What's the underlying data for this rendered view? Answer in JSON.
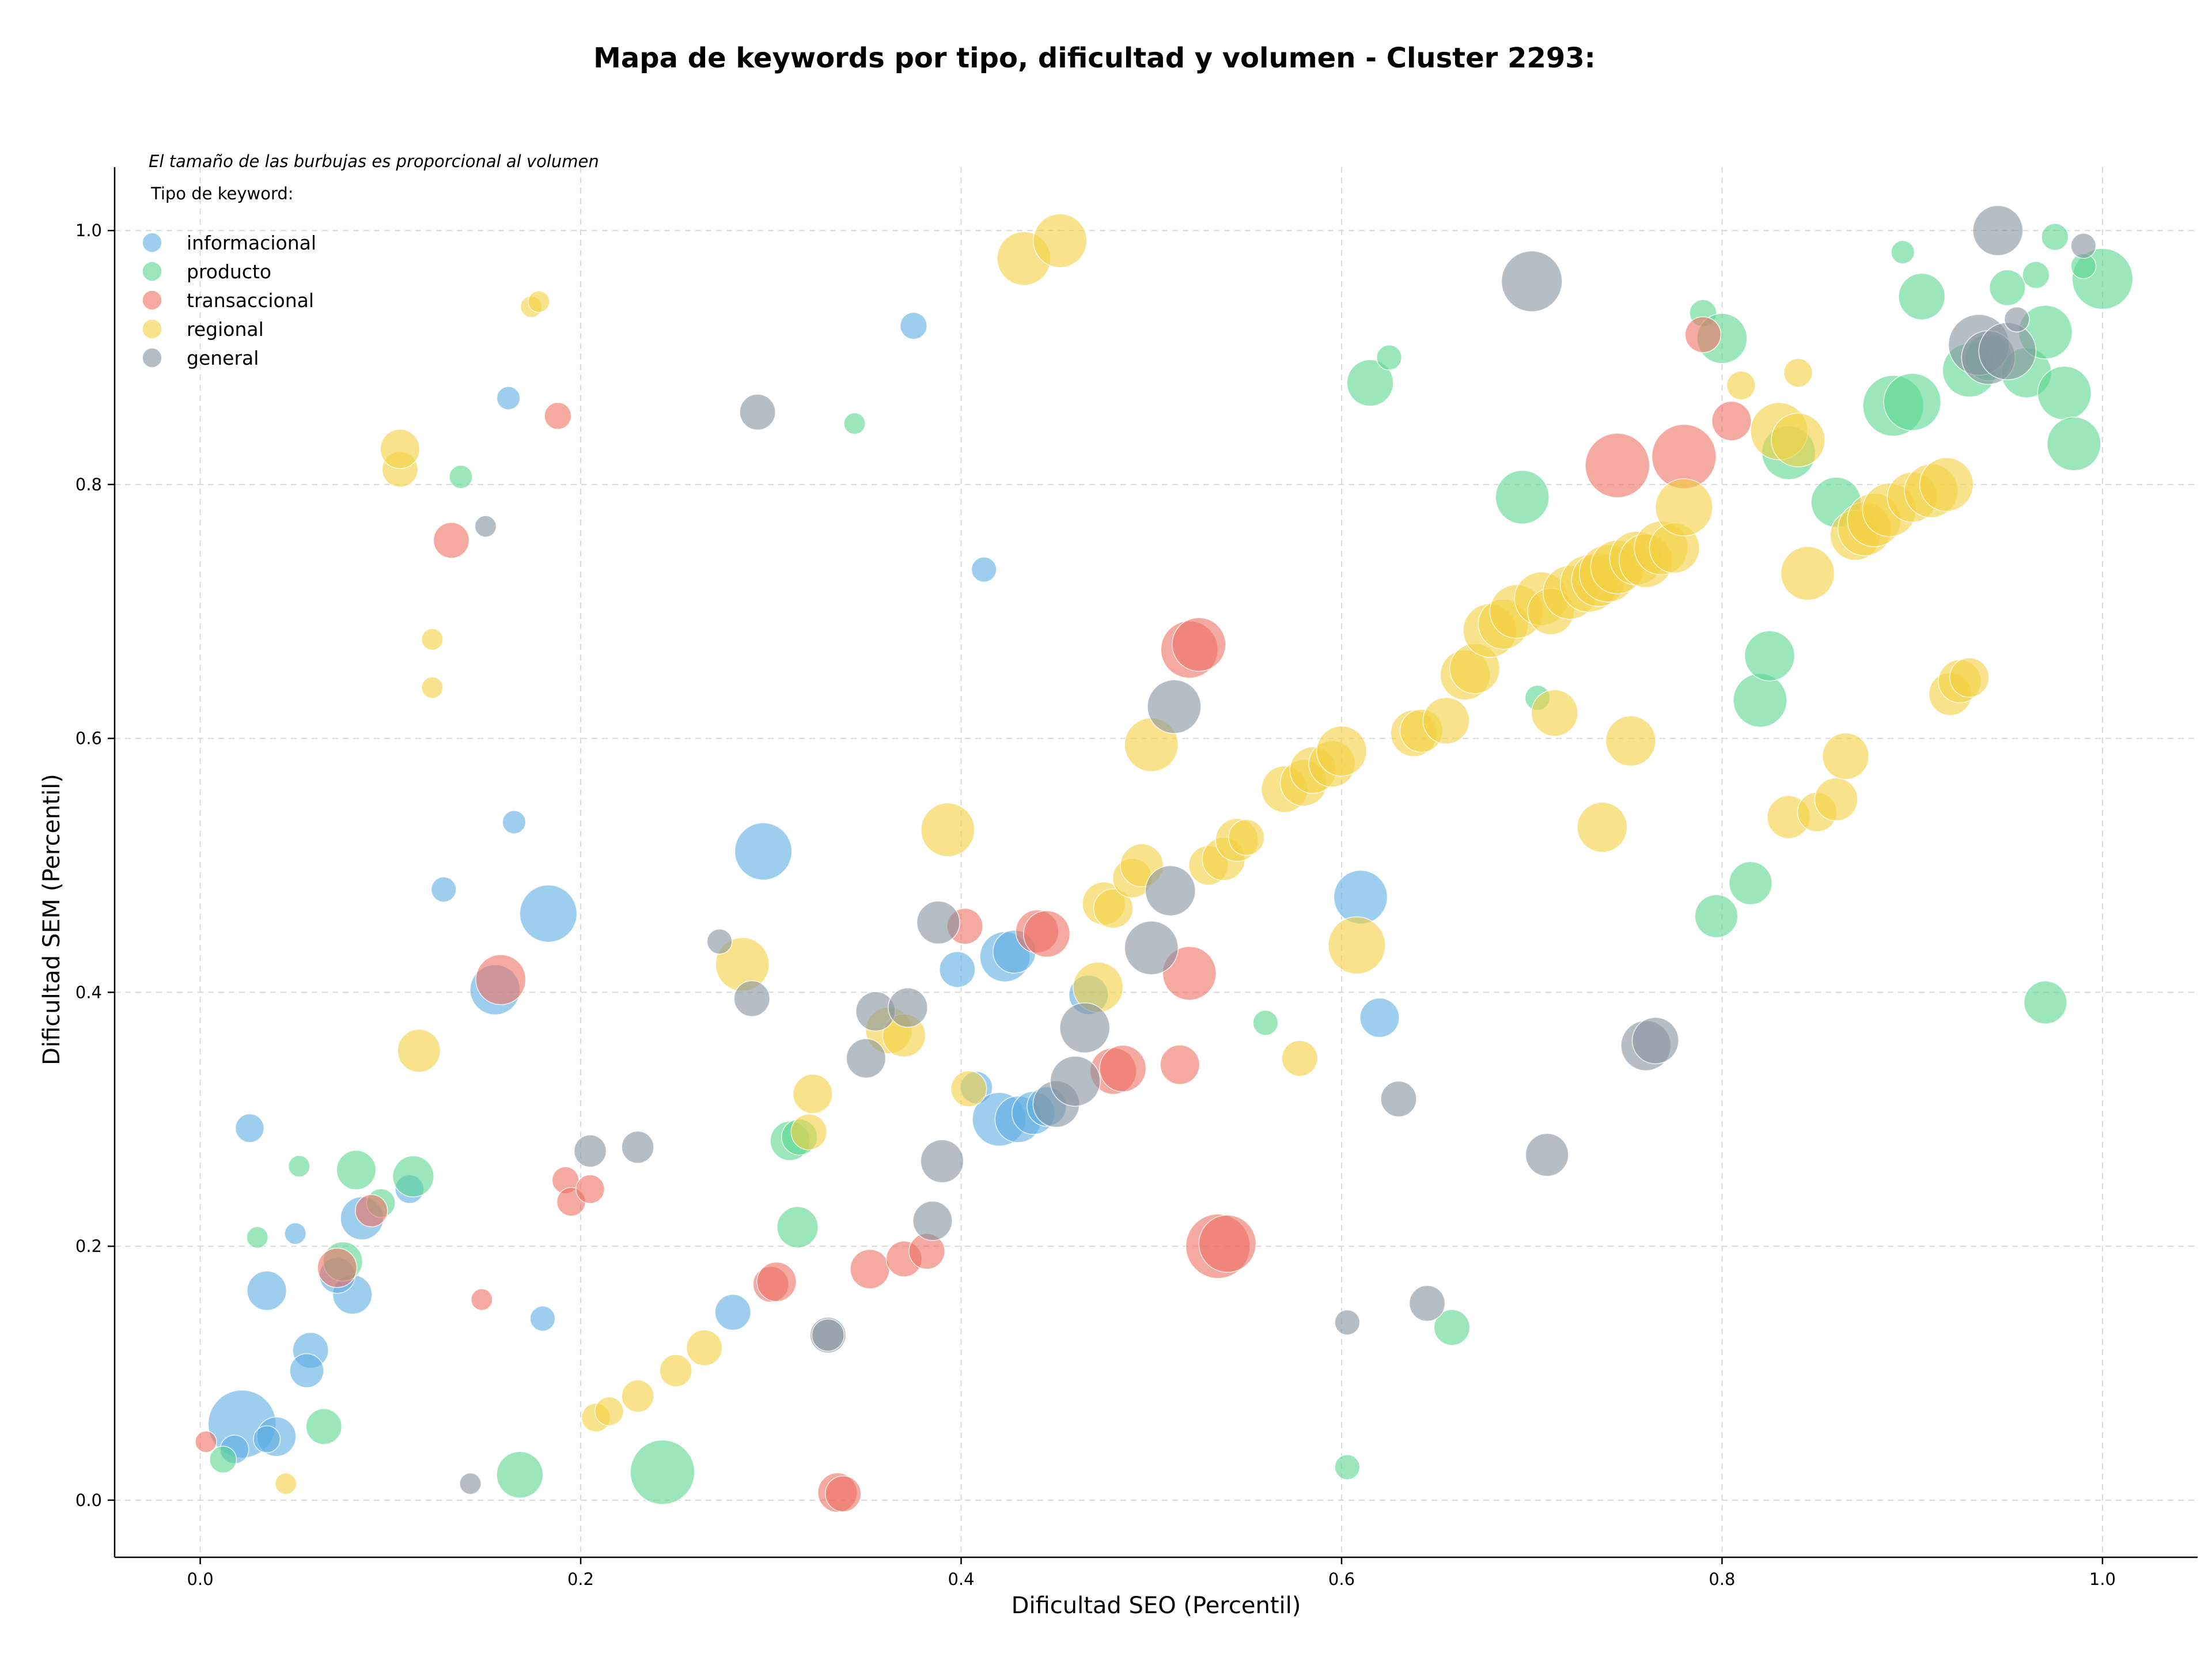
{
  "chart_data": {
    "type": "scatter",
    "title": "Mapa de keywords por tipo, dificultad y volumen - Cluster 2293:",
    "xlabel": "Dificultad SEO (Percentil)",
    "ylabel": "Dificultad SEM (Percentil)",
    "xlim": [
      -0.045,
      1.05
    ],
    "ylim": [
      -0.045,
      1.05
    ],
    "xticks": [
      "0.0",
      "0.2",
      "0.4",
      "0.6",
      "0.8",
      "1.0"
    ],
    "yticks": [
      "0.0",
      "0.2",
      "0.4",
      "0.6",
      "0.8",
      "1.0"
    ],
    "grid": true,
    "legend_placement": "top-left",
    "legend_note": "El tamaño de las burbujas es proporcional al volumen",
    "legend_title": "Tipo de keyword:",
    "series": [
      {
        "name": "informacional",
        "color": "#5dade2",
        "points": [
          [
            0.022,
            0.06,
            38
          ],
          [
            0.04,
            0.05,
            22
          ],
          [
            0.018,
            0.04,
            16
          ],
          [
            0.035,
            0.048,
            15
          ],
          [
            0.026,
            0.293,
            16
          ],
          [
            0.035,
            0.165,
            22
          ],
          [
            0.058,
            0.118,
            20
          ],
          [
            0.056,
            0.102,
            19
          ],
          [
            0.05,
            0.21,
            12
          ],
          [
            0.085,
            0.222,
            24
          ],
          [
            0.08,
            0.162,
            22
          ],
          [
            0.072,
            0.177,
            20
          ],
          [
            0.11,
            0.245,
            16
          ],
          [
            0.128,
            0.481,
            14
          ],
          [
            0.155,
            0.402,
            28
          ],
          [
            0.165,
            0.534,
            13
          ],
          [
            0.162,
            0.868,
            13
          ],
          [
            0.18,
            0.143,
            14
          ],
          [
            0.183,
            0.462,
            32
          ],
          [
            0.296,
            0.511,
            32
          ],
          [
            0.375,
            0.925,
            15
          ],
          [
            0.412,
            0.733,
            14
          ],
          [
            0.398,
            0.418,
            20
          ],
          [
            0.408,
            0.325,
            18
          ],
          [
            0.42,
            0.3,
            30
          ],
          [
            0.43,
            0.3,
            26
          ],
          [
            0.438,
            0.305,
            24
          ],
          [
            0.445,
            0.31,
            22
          ],
          [
            0.423,
            0.428,
            28
          ],
          [
            0.428,
            0.432,
            24
          ],
          [
            0.467,
            0.398,
            22
          ],
          [
            0.28,
            0.148,
            20
          ],
          [
            0.61,
            0.475,
            30
          ],
          [
            0.62,
            0.38,
            22
          ]
        ]
      },
      {
        "name": "producto",
        "color": "#58d68d",
        "points": [
          [
            0.012,
            0.032,
            15
          ],
          [
            0.03,
            0.207,
            12
          ],
          [
            0.052,
            0.263,
            12
          ],
          [
            0.065,
            0.058,
            20
          ],
          [
            0.075,
            0.188,
            22
          ],
          [
            0.082,
            0.26,
            22
          ],
          [
            0.095,
            0.234,
            16
          ],
          [
            0.112,
            0.255,
            23
          ],
          [
            0.137,
            0.806,
            13
          ],
          [
            0.168,
            0.02,
            26
          ],
          [
            0.243,
            0.022,
            36
          ],
          [
            0.31,
            0.283,
            22
          ],
          [
            0.315,
            0.286,
            20
          ],
          [
            0.314,
            0.215,
            23
          ],
          [
            0.344,
            0.848,
            12
          ],
          [
            0.56,
            0.376,
            14
          ],
          [
            0.603,
            0.026,
            14
          ],
          [
            0.615,
            0.88,
            26
          ],
          [
            0.625,
            0.9,
            14
          ],
          [
            0.658,
            0.136,
            20
          ],
          [
            0.695,
            0.79,
            30
          ],
          [
            0.703,
            0.632,
            14
          ],
          [
            0.79,
            0.935,
            15
          ],
          [
            0.8,
            0.915,
            28
          ],
          [
            0.797,
            0.46,
            24
          ],
          [
            0.815,
            0.486,
            24
          ],
          [
            0.82,
            0.63,
            30
          ],
          [
            0.825,
            0.665,
            28
          ],
          [
            0.835,
            0.825,
            30
          ],
          [
            0.86,
            0.786,
            28
          ],
          [
            0.89,
            0.862,
            34
          ],
          [
            0.9,
            0.865,
            32
          ],
          [
            0.895,
            0.983,
            13
          ],
          [
            0.905,
            0.948,
            26
          ],
          [
            0.93,
            0.89,
            30
          ],
          [
            0.94,
            0.9,
            26
          ],
          [
            0.95,
            0.955,
            20
          ],
          [
            0.96,
            0.888,
            28
          ],
          [
            0.965,
            0.965,
            15
          ],
          [
            0.975,
            0.995,
            15
          ],
          [
            0.97,
            0.92,
            30
          ],
          [
            0.98,
            0.872,
            30
          ],
          [
            0.985,
            0.832,
            30
          ],
          [
            1.0,
            0.962,
            34
          ],
          [
            0.99,
            0.972,
            14
          ],
          [
            0.97,
            0.392,
            24
          ]
        ]
      },
      {
        "name": "transaccional",
        "color": "#ec7063",
        "points": [
          [
            0.003,
            0.046,
            12
          ],
          [
            0.072,
            0.183,
            22
          ],
          [
            0.09,
            0.228,
            18
          ],
          [
            0.132,
            0.756,
            20
          ],
          [
            0.148,
            0.158,
            12
          ],
          [
            0.158,
            0.41,
            28
          ],
          [
            0.188,
            0.854,
            15
          ],
          [
            0.192,
            0.252,
            15
          ],
          [
            0.195,
            0.235,
            16
          ],
          [
            0.205,
            0.245,
            16
          ],
          [
            0.3,
            0.17,
            20
          ],
          [
            0.303,
            0.172,
            22
          ],
          [
            0.335,
            0.006,
            22
          ],
          [
            0.338,
            0.005,
            20
          ],
          [
            0.352,
            0.182,
            22
          ],
          [
            0.37,
            0.19,
            20
          ],
          [
            0.382,
            0.196,
            20
          ],
          [
            0.402,
            0.452,
            20
          ],
          [
            0.44,
            0.448,
            24
          ],
          [
            0.445,
            0.446,
            26
          ],
          [
            0.48,
            0.338,
            26
          ],
          [
            0.485,
            0.34,
            26
          ],
          [
            0.515,
            0.343,
            22
          ],
          [
            0.52,
            0.415,
            30
          ],
          [
            0.52,
            0.67,
            32
          ],
          [
            0.525,
            0.674,
            30
          ],
          [
            0.535,
            0.2,
            36
          ],
          [
            0.54,
            0.202,
            32
          ],
          [
            0.745,
            0.815,
            36
          ],
          [
            0.78,
            0.822,
            36
          ],
          [
            0.79,
            0.918,
            20
          ],
          [
            0.805,
            0.85,
            22
          ]
        ]
      },
      {
        "name": "regional",
        "color": "#f4d03f",
        "points": [
          [
            0.045,
            0.013,
            12
          ],
          [
            0.105,
            0.812,
            20
          ],
          [
            0.105,
            0.828,
            22
          ],
          [
            0.115,
            0.354,
            24
          ],
          [
            0.122,
            0.678,
            12
          ],
          [
            0.122,
            0.64,
            12
          ],
          [
            0.174,
            0.94,
            12
          ],
          [
            0.178,
            0.944,
            12
          ],
          [
            0.208,
            0.065,
            16
          ],
          [
            0.215,
            0.07,
            16
          ],
          [
            0.23,
            0.082,
            18
          ],
          [
            0.25,
            0.102,
            18
          ],
          [
            0.265,
            0.12,
            20
          ],
          [
            0.285,
            0.422,
            30
          ],
          [
            0.322,
            0.32,
            22
          ],
          [
            0.32,
            0.29,
            20
          ],
          [
            0.362,
            0.37,
            26
          ],
          [
            0.37,
            0.366,
            24
          ],
          [
            0.393,
            0.528,
            30
          ],
          [
            0.404,
            0.324,
            20
          ],
          [
            0.433,
            0.978,
            30
          ],
          [
            0.452,
            0.992,
            30
          ],
          [
            0.472,
            0.404,
            28
          ],
          [
            0.475,
            0.47,
            24
          ],
          [
            0.48,
            0.466,
            22
          ],
          [
            0.49,
            0.49,
            22
          ],
          [
            0.495,
            0.5,
            24
          ],
          [
            0.5,
            0.595,
            30
          ],
          [
            0.53,
            0.5,
            22
          ],
          [
            0.538,
            0.505,
            24
          ],
          [
            0.545,
            0.52,
            24
          ],
          [
            0.55,
            0.522,
            20
          ],
          [
            0.57,
            0.56,
            26
          ],
          [
            0.58,
            0.565,
            26
          ],
          [
            0.585,
            0.575,
            26
          ],
          [
            0.595,
            0.58,
            26
          ],
          [
            0.6,
            0.59,
            28
          ],
          [
            0.578,
            0.348,
            20
          ],
          [
            0.608,
            0.437,
            32
          ],
          [
            0.638,
            0.604,
            26
          ],
          [
            0.642,
            0.606,
            24
          ],
          [
            0.655,
            0.614,
            26
          ],
          [
            0.665,
            0.65,
            28
          ],
          [
            0.67,
            0.655,
            28
          ],
          [
            0.678,
            0.685,
            30
          ],
          [
            0.685,
            0.69,
            28
          ],
          [
            0.692,
            0.7,
            30
          ],
          [
            0.705,
            0.71,
            30
          ],
          [
            0.71,
            0.7,
            26
          ],
          [
            0.72,
            0.715,
            30
          ],
          [
            0.73,
            0.722,
            32
          ],
          [
            0.735,
            0.725,
            30
          ],
          [
            0.74,
            0.73,
            32
          ],
          [
            0.745,
            0.735,
            30
          ],
          [
            0.755,
            0.742,
            30
          ],
          [
            0.76,
            0.74,
            30
          ],
          [
            0.768,
            0.75,
            30
          ],
          [
            0.775,
            0.75,
            28
          ],
          [
            0.712,
            0.62,
            26
          ],
          [
            0.737,
            0.53,
            28
          ],
          [
            0.752,
            0.598,
            28
          ],
          [
            0.78,
            0.782,
            32
          ],
          [
            0.81,
            0.878,
            16
          ],
          [
            0.83,
            0.842,
            32
          ],
          [
            0.84,
            0.888,
            16
          ],
          [
            0.84,
            0.835,
            30
          ],
          [
            0.845,
            0.73,
            30
          ],
          [
            0.835,
            0.538,
            24
          ],
          [
            0.85,
            0.542,
            22
          ],
          [
            0.86,
            0.552,
            24
          ],
          [
            0.865,
            0.586,
            26
          ],
          [
            0.87,
            0.76,
            28
          ],
          [
            0.875,
            0.765,
            30
          ],
          [
            0.88,
            0.772,
            30
          ],
          [
            0.888,
            0.78,
            30
          ],
          [
            0.9,
            0.79,
            28
          ],
          [
            0.91,
            0.795,
            30
          ],
          [
            0.918,
            0.8,
            30
          ],
          [
            0.92,
            0.635,
            24
          ],
          [
            0.925,
            0.645,
            24
          ],
          [
            0.93,
            0.648,
            22
          ]
        ]
      },
      {
        "name": "general",
        "color": "#85929e",
        "points": [
          [
            0.142,
            0.013,
            12
          ],
          [
            0.15,
            0.767,
            12
          ],
          [
            0.205,
            0.275,
            18
          ],
          [
            0.23,
            0.278,
            18
          ],
          [
            0.273,
            0.44,
            14
          ],
          [
            0.29,
            0.395,
            20
          ],
          [
            0.293,
            0.857,
            20
          ],
          [
            0.33,
            0.13,
            20
          ],
          [
            0.33,
            0.13,
            18
          ],
          [
            0.35,
            0.348,
            22
          ],
          [
            0.355,
            0.385,
            22
          ],
          [
            0.372,
            0.388,
            22
          ],
          [
            0.385,
            0.22,
            22
          ],
          [
            0.388,
            0.455,
            24
          ],
          [
            0.39,
            0.267,
            24
          ],
          [
            0.45,
            0.312,
            26
          ],
          [
            0.46,
            0.33,
            28
          ],
          [
            0.465,
            0.372,
            28
          ],
          [
            0.5,
            0.435,
            30
          ],
          [
            0.51,
            0.48,
            28
          ],
          [
            0.512,
            0.625,
            30
          ],
          [
            0.63,
            0.316,
            20
          ],
          [
            0.603,
            0.14,
            14
          ],
          [
            0.645,
            0.155,
            20
          ],
          [
            0.7,
            0.96,
            34
          ],
          [
            0.708,
            0.272,
            24
          ],
          [
            0.76,
            0.358,
            28
          ],
          [
            0.765,
            0.362,
            26
          ],
          [
            0.935,
            0.91,
            34
          ],
          [
            0.945,
            1.0,
            28
          ],
          [
            0.94,
            0.9,
            30
          ],
          [
            0.95,
            0.905,
            32
          ],
          [
            0.955,
            0.93,
            14
          ],
          [
            0.99,
            0.988,
            14
          ]
        ]
      }
    ]
  }
}
